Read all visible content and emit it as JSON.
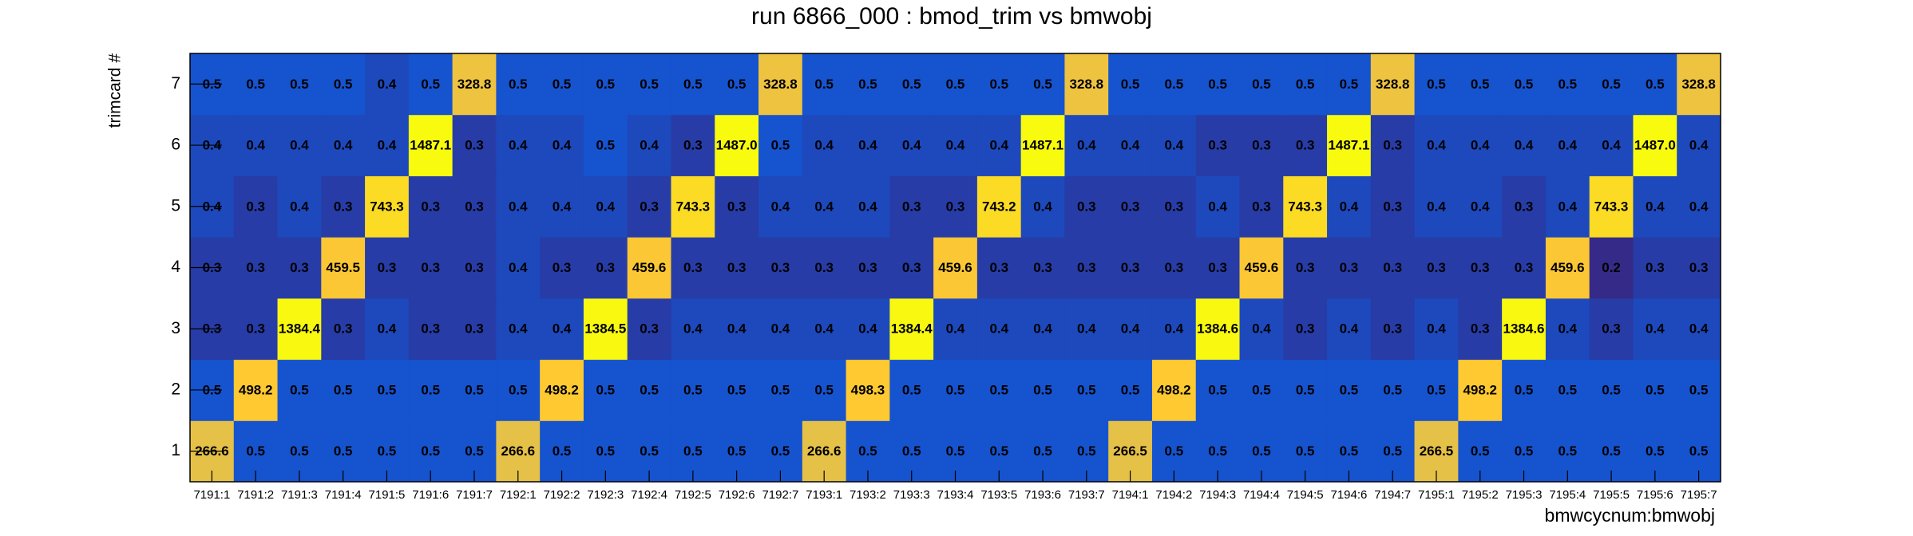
{
  "chart_data": {
    "type": "heatmap",
    "title": "run 6866_000 : bmod_trim vs bmwobj",
    "xlabel": "bmwcycnum:bmwobj",
    "ylabel": "trimcard #",
    "categories": [
      "7191:1",
      "7191:2",
      "7191:3",
      "7191:4",
      "7191:5",
      "7191:6",
      "7191:7",
      "7192:1",
      "7192:2",
      "7192:3",
      "7192:4",
      "7192:5",
      "7192:6",
      "7192:7",
      "7193:1",
      "7193:2",
      "7193:3",
      "7193:4",
      "7193:5",
      "7193:6",
      "7193:7",
      "7194:1",
      "7194:2",
      "7194:3",
      "7194:4",
      "7194:5",
      "7194:6",
      "7194:7",
      "7195:1",
      "7195:2",
      "7195:3",
      "7195:4",
      "7195:5",
      "7195:6",
      "7195:7"
    ],
    "y": [
      1,
      2,
      3,
      4,
      5,
      6,
      7
    ],
    "values": [
      [
        266.6,
        0.5,
        0.5,
        0.5,
        0.5,
        0.5,
        0.5,
        266.6,
        0.5,
        0.5,
        0.5,
        0.5,
        0.5,
        0.5,
        266.6,
        0.5,
        0.5,
        0.5,
        0.5,
        0.5,
        0.5,
        266.5,
        0.5,
        0.5,
        0.5,
        0.5,
        0.5,
        0.5,
        266.5,
        0.5,
        0.5,
        0.5,
        0.5,
        0.5,
        0.5
      ],
      [
        0.5,
        498.2,
        0.5,
        0.5,
        0.5,
        0.5,
        0.5,
        0.5,
        498.2,
        0.5,
        0.5,
        0.5,
        0.5,
        0.5,
        0.5,
        498.3,
        0.5,
        0.5,
        0.5,
        0.5,
        0.5,
        0.5,
        498.2,
        0.5,
        0.5,
        0.5,
        0.5,
        0.5,
        0.5,
        498.2,
        0.5,
        0.5,
        0.5,
        0.5,
        0.5
      ],
      [
        0.3,
        0.3,
        1384.4,
        0.3,
        0.4,
        0.3,
        0.3,
        0.4,
        0.4,
        1384.5,
        0.3,
        0.4,
        0.4,
        0.4,
        0.4,
        0.4,
        1384.4,
        0.4,
        0.4,
        0.4,
        0.4,
        0.4,
        0.4,
        1384.6,
        0.4,
        0.3,
        0.4,
        0.3,
        0.4,
        0.3,
        1384.6,
        0.4,
        0.3,
        0.4,
        0.4
      ],
      [
        0.3,
        0.3,
        0.3,
        459.5,
        0.3,
        0.3,
        0.3,
        0.4,
        0.3,
        0.3,
        459.6,
        0.3,
        0.3,
        0.3,
        0.3,
        0.3,
        0.3,
        459.6,
        0.3,
        0.3,
        0.3,
        0.3,
        0.3,
        0.3,
        459.6,
        0.3,
        0.3,
        0.3,
        0.3,
        0.3,
        0.3,
        459.6,
        0.2,
        0.3,
        0.3
      ],
      [
        0.4,
        0.3,
        0.4,
        0.3,
        743.3,
        0.3,
        0.3,
        0.4,
        0.4,
        0.4,
        0.3,
        743.3,
        0.3,
        0.4,
        0.4,
        0.4,
        0.3,
        0.3,
        743.2,
        0.4,
        0.3,
        0.3,
        0.3,
        0.4,
        0.3,
        743.3,
        0.4,
        0.3,
        0.4,
        0.4,
        0.3,
        0.4,
        743.3,
        0.4,
        0.4
      ],
      [
        0.4,
        0.4,
        0.4,
        0.4,
        0.4,
        1487.1,
        0.3,
        0.4,
        0.4,
        0.5,
        0.4,
        0.3,
        1487.0,
        0.5,
        0.4,
        0.4,
        0.4,
        0.4,
        0.4,
        1487.1,
        0.4,
        0.4,
        0.4,
        0.3,
        0.3,
        0.3,
        1487.1,
        0.3,
        0.4,
        0.4,
        0.4,
        0.4,
        0.4,
        1487.0,
        0.4
      ],
      [
        0.5,
        0.5,
        0.5,
        0.5,
        0.4,
        0.5,
        328.8,
        0.5,
        0.5,
        0.5,
        0.5,
        0.5,
        0.5,
        328.8,
        0.5,
        0.5,
        0.5,
        0.5,
        0.5,
        0.5,
        328.8,
        0.5,
        0.5,
        0.5,
        0.5,
        0.5,
        0.5,
        328.8,
        0.5,
        0.5,
        0.5,
        0.5,
        0.5,
        0.5,
        328.8
      ]
    ],
    "value_labels": [
      [
        "266.6",
        "0.5",
        "0.5",
        "0.5",
        "0.5",
        "0.5",
        "0.5",
        "266.6",
        "0.5",
        "0.5",
        "0.5",
        "0.5",
        "0.5",
        "0.5",
        "266.6",
        "0.5",
        "0.5",
        "0.5",
        "0.5",
        "0.5",
        "0.5",
        "266.5",
        "0.5",
        "0.5",
        "0.5",
        "0.5",
        "0.5",
        "0.5",
        "266.5",
        "0.5",
        "0.5",
        "0.5",
        "0.5",
        "0.5",
        "0.5"
      ],
      [
        "0.5",
        "498.2",
        "0.5",
        "0.5",
        "0.5",
        "0.5",
        "0.5",
        "0.5",
        "498.2",
        "0.5",
        "0.5",
        "0.5",
        "0.5",
        "0.5",
        "0.5",
        "498.3",
        "0.5",
        "0.5",
        "0.5",
        "0.5",
        "0.5",
        "0.5",
        "498.2",
        "0.5",
        "0.5",
        "0.5",
        "0.5",
        "0.5",
        "0.5",
        "498.2",
        "0.5",
        "0.5",
        "0.5",
        "0.5",
        "0.5"
      ],
      [
        "0.3",
        "0.3",
        "1384.4",
        "0.3",
        "0.4",
        "0.3",
        "0.3",
        "0.4",
        "0.4",
        "1384.5",
        "0.3",
        "0.4",
        "0.4",
        "0.4",
        "0.4",
        "0.4",
        "1384.4",
        "0.4",
        "0.4",
        "0.4",
        "0.4",
        "0.4",
        "0.4",
        "1384.6",
        "0.4",
        "0.3",
        "0.4",
        "0.3",
        "0.4",
        "0.3",
        "1384.6",
        "0.4",
        "0.3",
        "0.4",
        "0.4"
      ],
      [
        "0.3",
        "0.3",
        "0.3",
        "459.5",
        "0.3",
        "0.3",
        "0.3",
        "0.4",
        "0.3",
        "0.3",
        "459.6",
        "0.3",
        "0.3",
        "0.3",
        "0.3",
        "0.3",
        "0.3",
        "459.6",
        "0.3",
        "0.3",
        "0.3",
        "0.3",
        "0.3",
        "0.3",
        "459.6",
        "0.3",
        "0.3",
        "0.3",
        "0.3",
        "0.3",
        "0.3",
        "459.6",
        "0.2",
        "0.3",
        "0.3"
      ],
      [
        "0.4",
        "0.3",
        "0.4",
        "0.3",
        "743.3",
        "0.3",
        "0.3",
        "0.4",
        "0.4",
        "0.4",
        "0.3",
        "743.3",
        "0.3",
        "0.4",
        "0.4",
        "0.4",
        "0.3",
        "0.3",
        "743.2",
        "0.4",
        "0.3",
        "0.3",
        "0.3",
        "0.4",
        "0.3",
        "743.3",
        "0.4",
        "0.3",
        "0.4",
        "0.4",
        "0.3",
        "0.4",
        "743.3",
        "0.4",
        "0.4"
      ],
      [
        "0.4",
        "0.4",
        "0.4",
        "0.4",
        "0.4",
        "1487.1",
        "0.3",
        "0.4",
        "0.4",
        "0.5",
        "0.4",
        "0.3",
        "1487.0",
        "0.5",
        "0.4",
        "0.4",
        "0.4",
        "0.4",
        "0.4",
        "1487.1",
        "0.4",
        "0.4",
        "0.4",
        "0.3",
        "0.3",
        "0.3",
        "1487.1",
        "0.3",
        "0.4",
        "0.4",
        "0.4",
        "0.4",
        "0.4",
        "1487.0",
        "0.4"
      ],
      [
        "0.5",
        "0.5",
        "0.5",
        "0.5",
        "0.4",
        "0.5",
        "328.8",
        "0.5",
        "0.5",
        "0.5",
        "0.5",
        "0.5",
        "0.5",
        "328.8",
        "0.5",
        "0.5",
        "0.5",
        "0.5",
        "0.5",
        "0.5",
        "328.8",
        "0.5",
        "0.5",
        "0.5",
        "0.5",
        "0.5",
        "0.5",
        "328.8",
        "0.5",
        "0.5",
        "0.5",
        "0.5",
        "0.5",
        "0.5",
        "328.8"
      ]
    ],
    "zlim": [
      0.2,
      1487.1
    ],
    "log_z": true,
    "palette": [
      "#352a87",
      "#0f5cdd",
      "#1481d6",
      "#06a4ca",
      "#2eb7a4",
      "#87bf77",
      "#d1bb59",
      "#fec832",
      "#f9fb0e"
    ]
  }
}
